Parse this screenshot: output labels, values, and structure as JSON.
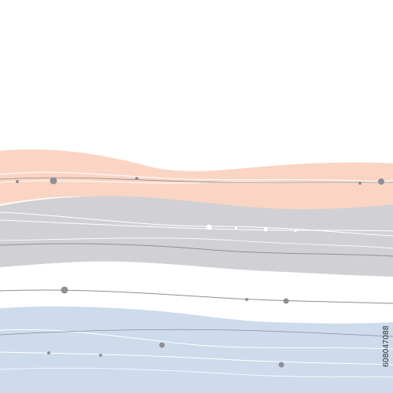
{
  "image": {
    "kind": "abstract wavy horizontal bands with thin lines and dots",
    "background_color": "#ffffff",
    "bands": [
      {
        "name": "peach",
        "color": "#fbd5c3"
      },
      {
        "name": "gray",
        "color": "#d1d1d5"
      },
      {
        "name": "blue",
        "color": "#cddbed"
      }
    ],
    "line_color_light": "#ffffff",
    "line_color_dark": "#8f8f96",
    "dot_color": "#8f8f96"
  },
  "stock_id": "608047088"
}
